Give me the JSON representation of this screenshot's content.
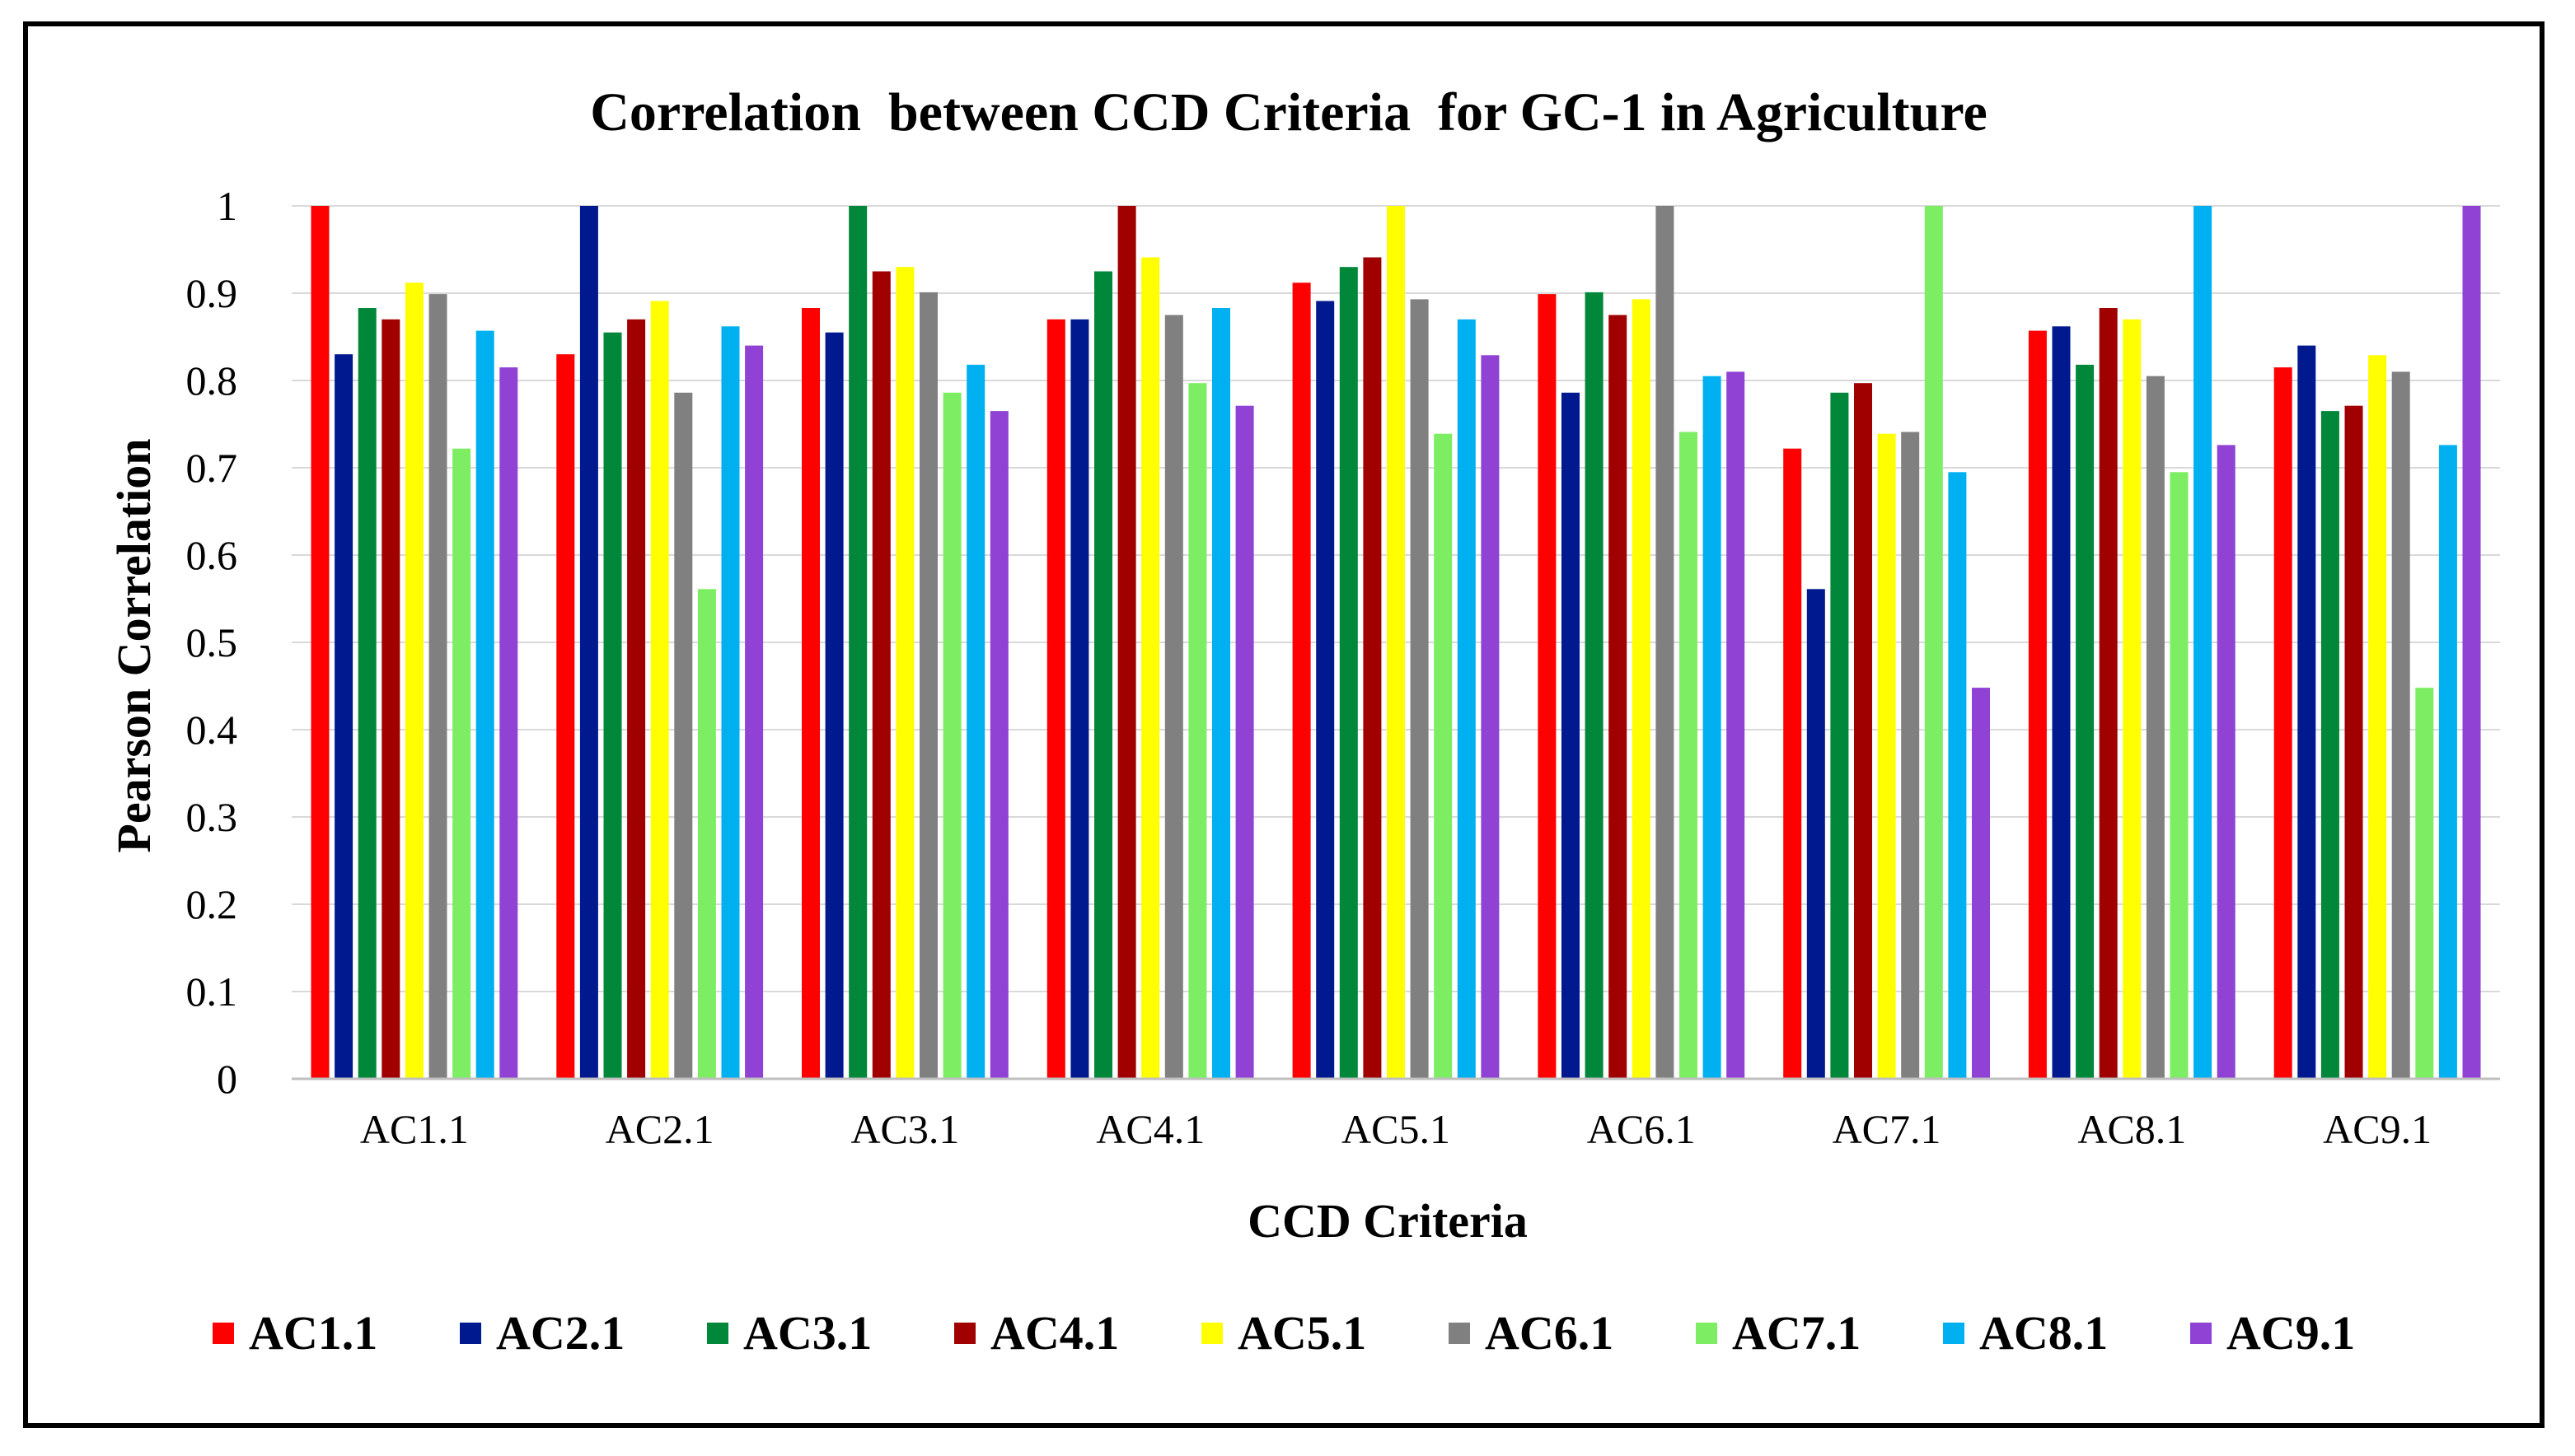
{
  "chart_data": {
    "type": "bar",
    "title": "Correlation  between CCD Criteria  for GC-1 in Agriculture",
    "xlabel": "CCD Criteria",
    "ylabel": "Pearson Correlation",
    "ylim": [
      0,
      1
    ],
    "yticks": [
      0,
      0.1,
      0.2,
      0.3,
      0.4,
      0.5,
      0.6,
      0.7,
      0.8,
      0.9,
      1
    ],
    "ytick_labels": [
      "0",
      "0.1",
      "0.2",
      "0.3",
      "0.4",
      "0.5",
      "0.6",
      "0.7",
      "0.8",
      "0.9",
      "1"
    ],
    "grid": true,
    "legend_position": "bottom",
    "categories": [
      "AC1.1",
      "AC2.1",
      "AC3.1",
      "AC4.1",
      "AC5.1",
      "AC6.1",
      "AC7.1",
      "AC8.1",
      "AC9.1"
    ],
    "series": [
      {
        "name": "AC1.1",
        "color": "#ff0000",
        "values": [
          1.0,
          0.83,
          0.883,
          0.87,
          0.912,
          0.899,
          0.722,
          0.857,
          0.815
        ]
      },
      {
        "name": "AC2.1",
        "color": "#00198f",
        "values": [
          0.83,
          1.0,
          0.855,
          0.87,
          0.891,
          0.786,
          0.561,
          0.862,
          0.84
        ]
      },
      {
        "name": "AC3.1",
        "color": "#00873a",
        "values": [
          0.883,
          0.855,
          1.0,
          0.925,
          0.93,
          0.901,
          0.786,
          0.818,
          0.765
        ]
      },
      {
        "name": "AC4.1",
        "color": "#a00000",
        "values": [
          0.87,
          0.87,
          0.925,
          1.0,
          0.941,
          0.875,
          0.797,
          0.883,
          0.771
        ]
      },
      {
        "name": "AC5.1",
        "color": "#ffff00",
        "values": [
          0.912,
          0.891,
          0.93,
          0.941,
          1.0,
          0.893,
          0.739,
          0.87,
          0.829
        ]
      },
      {
        "name": "AC6.1",
        "color": "#808080",
        "values": [
          0.899,
          0.786,
          0.901,
          0.875,
          0.893,
          1.0,
          0.741,
          0.805,
          0.81
        ]
      },
      {
        "name": "AC7.1",
        "color": "#7dee64",
        "values": [
          0.722,
          0.561,
          0.786,
          0.797,
          0.739,
          0.741,
          1.0,
          0.695,
          0.448
        ]
      },
      {
        "name": "AC8.1",
        "color": "#00b0f0",
        "values": [
          0.857,
          0.862,
          0.818,
          0.883,
          0.87,
          0.805,
          0.695,
          1.0,
          0.726
        ]
      },
      {
        "name": "AC9.1",
        "color": "#9042d4",
        "values": [
          0.815,
          0.84,
          0.765,
          0.771,
          0.829,
          0.81,
          0.448,
          0.726,
          1.0
        ]
      }
    ]
  }
}
